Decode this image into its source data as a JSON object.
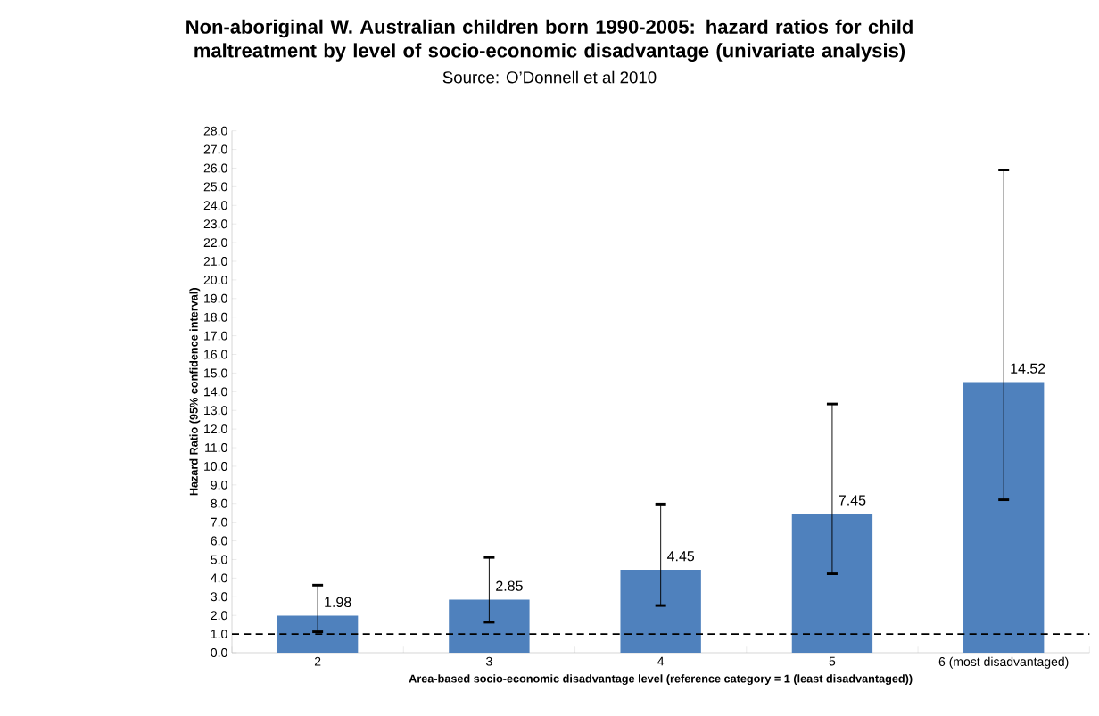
{
  "chart_data": {
    "type": "bar",
    "title": "Non-aboriginal W. Australian children born 1990-2005: hazard ratios for child maltreatment by level of socio-economic disadvantage (univariate analysis)",
    "annotations": [
      "Source: O’Donnell et al 2010"
    ],
    "xlabel": "Area-based socio-economic disadvantage level (reference category = 1 (least disadvantaged))",
    "ylabel": "Hazard Ratio (95% confidence interval)",
    "categories": [
      "2",
      "3",
      "4",
      "5",
      "6 (most disadvantaged)"
    ],
    "values": [
      1.98,
      2.85,
      4.45,
      7.45,
      14.52
    ],
    "errors": [
      [
        1.12,
        3.62
      ],
      [
        1.63,
        5.11
      ],
      [
        2.53,
        7.97
      ],
      [
        4.23,
        13.34
      ],
      [
        8.2,
        25.9
      ]
    ],
    "color": "#4f81bd",
    "data_labels": true,
    "ylim": [
      0,
      28
    ],
    "yticks": [
      {
        "value": 0,
        "label": "0.0"
      },
      {
        "value": 1,
        "label": "1.0"
      },
      {
        "value": 2,
        "label": "2.0"
      },
      {
        "value": 3,
        "label": "3.0"
      },
      {
        "value": 4,
        "label": "4.0"
      },
      {
        "value": 5,
        "label": "5.0"
      },
      {
        "value": 6,
        "label": "6.0"
      },
      {
        "value": 7,
        "label": "7.0"
      },
      {
        "value": 8,
        "label": "8.0"
      },
      {
        "value": 9,
        "label": "9.0"
      },
      {
        "value": 10,
        "label": "10.0"
      },
      {
        "value": 11,
        "label": "11.0"
      },
      {
        "value": 12,
        "label": "12.0"
      },
      {
        "value": 13,
        "label": "13.0"
      },
      {
        "value": 14,
        "label": "14.0"
      },
      {
        "value": 15,
        "label": "15.0"
      },
      {
        "value": 16,
        "label": "16.0"
      },
      {
        "value": 17,
        "label": "17.0"
      },
      {
        "value": 18,
        "label": "18.0"
      },
      {
        "value": 19,
        "label": "19.0"
      },
      {
        "value": 20,
        "label": "20.0"
      },
      {
        "value": 21,
        "label": "21.0"
      },
      {
        "value": 22,
        "label": "22.0"
      },
      {
        "value": 23,
        "label": "23.0"
      },
      {
        "value": 24,
        "label": "24.0"
      },
      {
        "value": 25,
        "label": "25.0"
      },
      {
        "value": 26,
        "label": "26.0"
      },
      {
        "value": 27,
        "label": "27.0"
      },
      {
        "value": 28,
        "label": "28.0"
      }
    ],
    "ref_lines": [
      {
        "axis": "y",
        "value": 1,
        "color": "#000000",
        "line_style": "dashed"
      }
    ]
  }
}
